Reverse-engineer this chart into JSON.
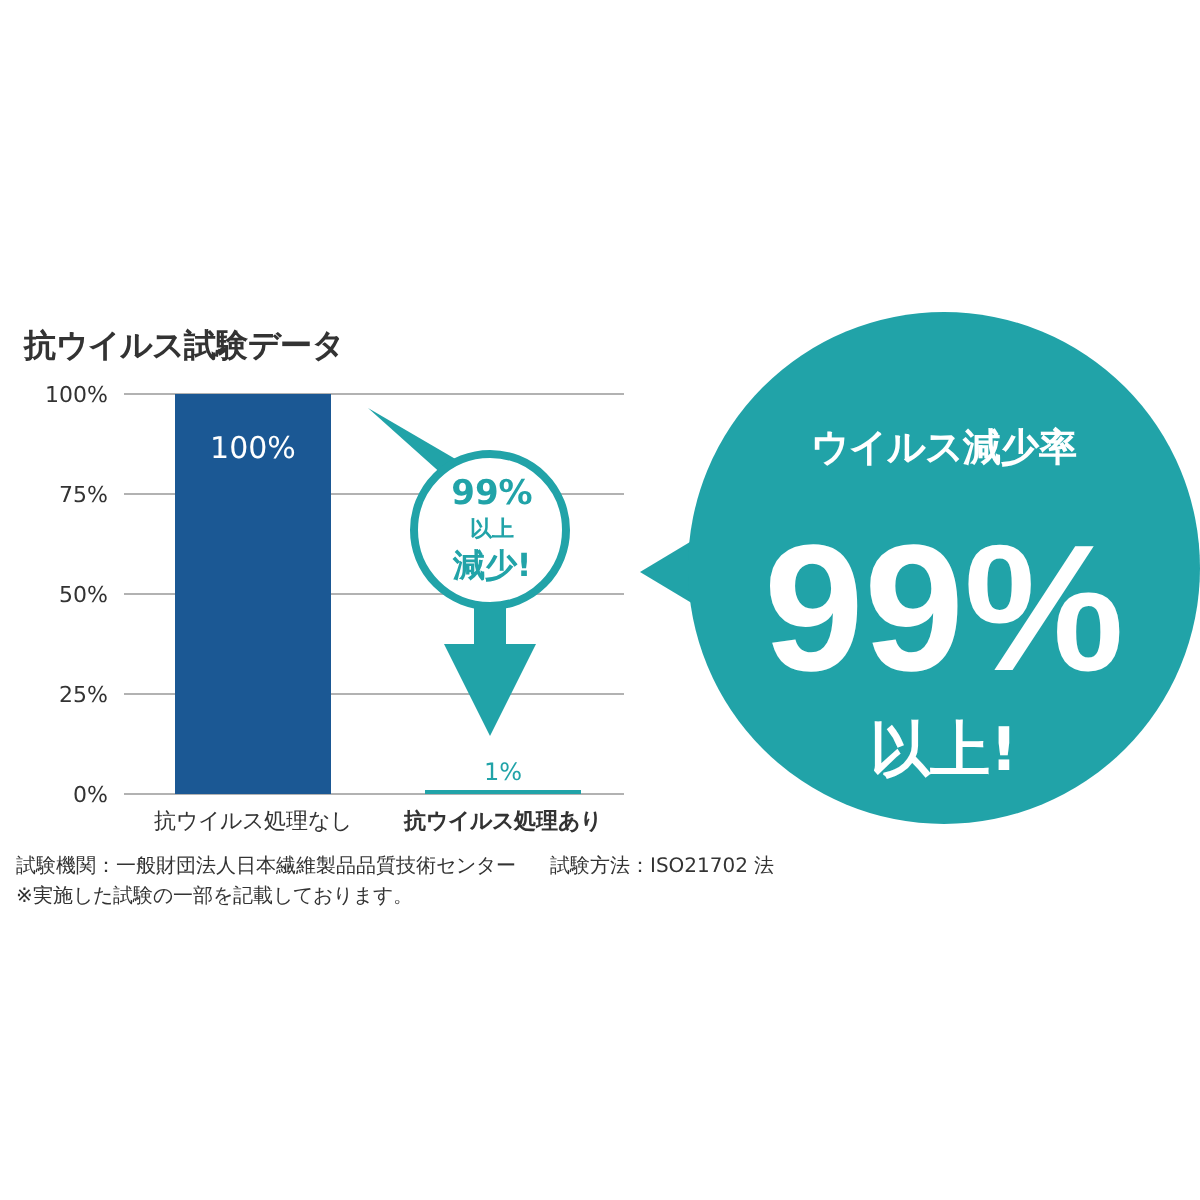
{
  "chart_data": {
    "type": "bar",
    "title": "抗ウイルス試験データ",
    "categories": [
      "抗ウイルス処理なし",
      "抗ウイルス処理あり"
    ],
    "values": [
      100,
      1
    ],
    "colors": [
      "#1b5894",
      "#21a3a8"
    ],
    "value_labels": [
      "100%",
      "1%"
    ],
    "ylim": [
      0,
      100
    ],
    "yticks": [
      {
        "value": 0,
        "label": "0%"
      },
      {
        "value": 25,
        "label": "25%"
      },
      {
        "value": 50,
        "label": "50%"
      },
      {
        "value": 75,
        "label": "75%"
      },
      {
        "value": 100,
        "label": "100%"
      }
    ],
    "grid": "y",
    "annotations": [
      "99%",
      "以上",
      "減少!",
      "ウイルス減少率",
      "99%",
      "以上!",
      "試験機関：一般財団法人日本繊維製品品質技術センター",
      "試験方法：ISO21702 法",
      "※実施した試験の一部を記載しております。"
    ]
  }
}
